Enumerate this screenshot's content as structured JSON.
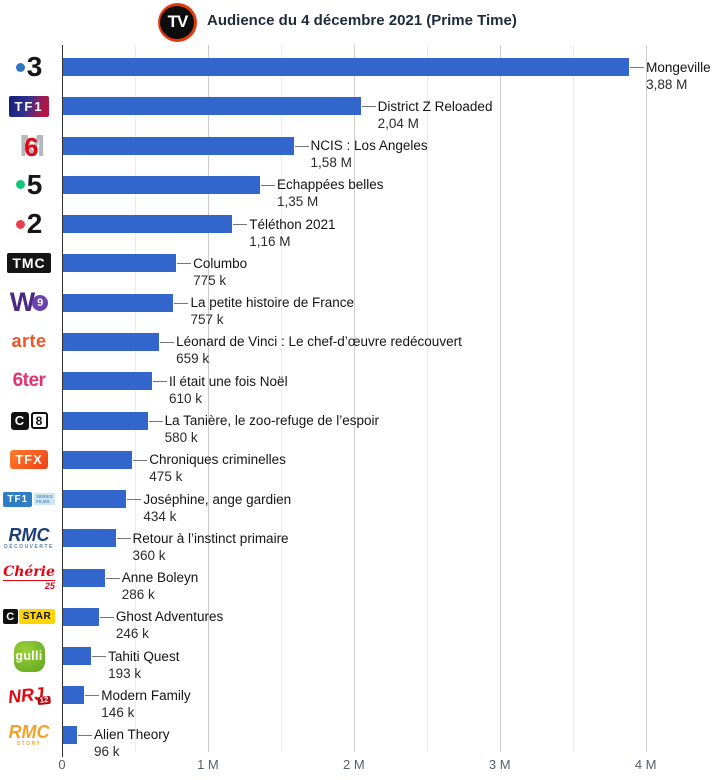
{
  "header": {
    "logo_icon": "tv-logo",
    "logo_text": "TV",
    "title": "Audience du 4 décembre 2021 (Prime Time)"
  },
  "chart_data": {
    "type": "bar",
    "orientation": "horizontal",
    "title": "Audience du 4 décembre 2021 (Prime Time)",
    "unit": "viewers",
    "style": {
      "bar_color": "#3366CC",
      "major_gridline_color": "#cccccc",
      "minor_gridline_color": "#ebebeb",
      "axis_line_color": "#333333",
      "connector_color": "#757575"
    },
    "axis": {
      "max_millions": 4.53,
      "gridline_step_millions": 0.5,
      "ticks": [
        {
          "value_millions": 0,
          "label": "0"
        },
        {
          "value_millions": 1,
          "label": "1 M"
        },
        {
          "value_millions": 2,
          "label": "2 M"
        },
        {
          "value_millions": 3,
          "label": "3 M"
        },
        {
          "value_millions": 4,
          "label": "4 M"
        }
      ]
    },
    "rows": [
      {
        "channel": "France 3",
        "logo": "france3",
        "program": "Mongeville",
        "value_millions": 3.88,
        "value_label": "3,88 M"
      },
      {
        "channel": "TF1",
        "logo": "tf1",
        "program": "District Z Reloaded",
        "value_millions": 2.04,
        "value_label": "2,04 M"
      },
      {
        "channel": "M6",
        "logo": "m6",
        "program": "NCIS : Los Angeles",
        "value_millions": 1.58,
        "value_label": "1,58 M"
      },
      {
        "channel": "France 5",
        "logo": "france5",
        "program": "Echappées belles",
        "value_millions": 1.35,
        "value_label": "1,35 M"
      },
      {
        "channel": "France 2",
        "logo": "france2",
        "program": "Téléthon 2021",
        "value_millions": 1.16,
        "value_label": "1,16 M"
      },
      {
        "channel": "TMC",
        "logo": "tmc",
        "program": "Columbo",
        "value_millions": 0.775,
        "value_label": "775 k"
      },
      {
        "channel": "W9",
        "logo": "w9",
        "program": "La petite histoire de France",
        "value_millions": 0.757,
        "value_label": "757 k"
      },
      {
        "channel": "Arte",
        "logo": "arte",
        "program": "Léonard de Vinci : Le chef-d’œuvre redécouvert",
        "value_millions": 0.659,
        "value_label": "659 k"
      },
      {
        "channel": "6ter",
        "logo": "sixter",
        "program": "Il était une fois Noël",
        "value_millions": 0.61,
        "value_label": "610 k"
      },
      {
        "channel": "C8",
        "logo": "c8",
        "program": "La Tanière, le zoo-refuge de l’espoir",
        "value_millions": 0.58,
        "value_label": "580 k"
      },
      {
        "channel": "TFX",
        "logo": "tfx",
        "program": "Chroniques criminelles",
        "value_millions": 0.475,
        "value_label": "475 k"
      },
      {
        "channel": "TF1 Séries Films",
        "logo": "tf1sf",
        "program": "Joséphine, ange gardien",
        "value_millions": 0.434,
        "value_label": "434 k"
      },
      {
        "channel": "RMC Découverte",
        "logo": "rmcd",
        "program": "Retour à l’instinct primaire",
        "value_millions": 0.36,
        "value_label": "360 k"
      },
      {
        "channel": "Chérie 25",
        "logo": "cherie25",
        "program": "Anne Boleyn",
        "value_millions": 0.286,
        "value_label": "286 k"
      },
      {
        "channel": "CSTAR",
        "logo": "cstar",
        "program": "Ghost Adventures",
        "value_millions": 0.246,
        "value_label": "246 k"
      },
      {
        "channel": "Gulli",
        "logo": "gulli",
        "program": "Tahiti Quest",
        "value_millions": 0.193,
        "value_label": "193 k"
      },
      {
        "channel": "NRJ 12",
        "logo": "nrj12",
        "program": "Modern Family",
        "value_millions": 0.146,
        "value_label": "146 k"
      },
      {
        "channel": "RMC Story",
        "logo": "rmcs",
        "program": "Alien Theory",
        "value_millions": 0.096,
        "value_label": "96 k"
      }
    ]
  }
}
